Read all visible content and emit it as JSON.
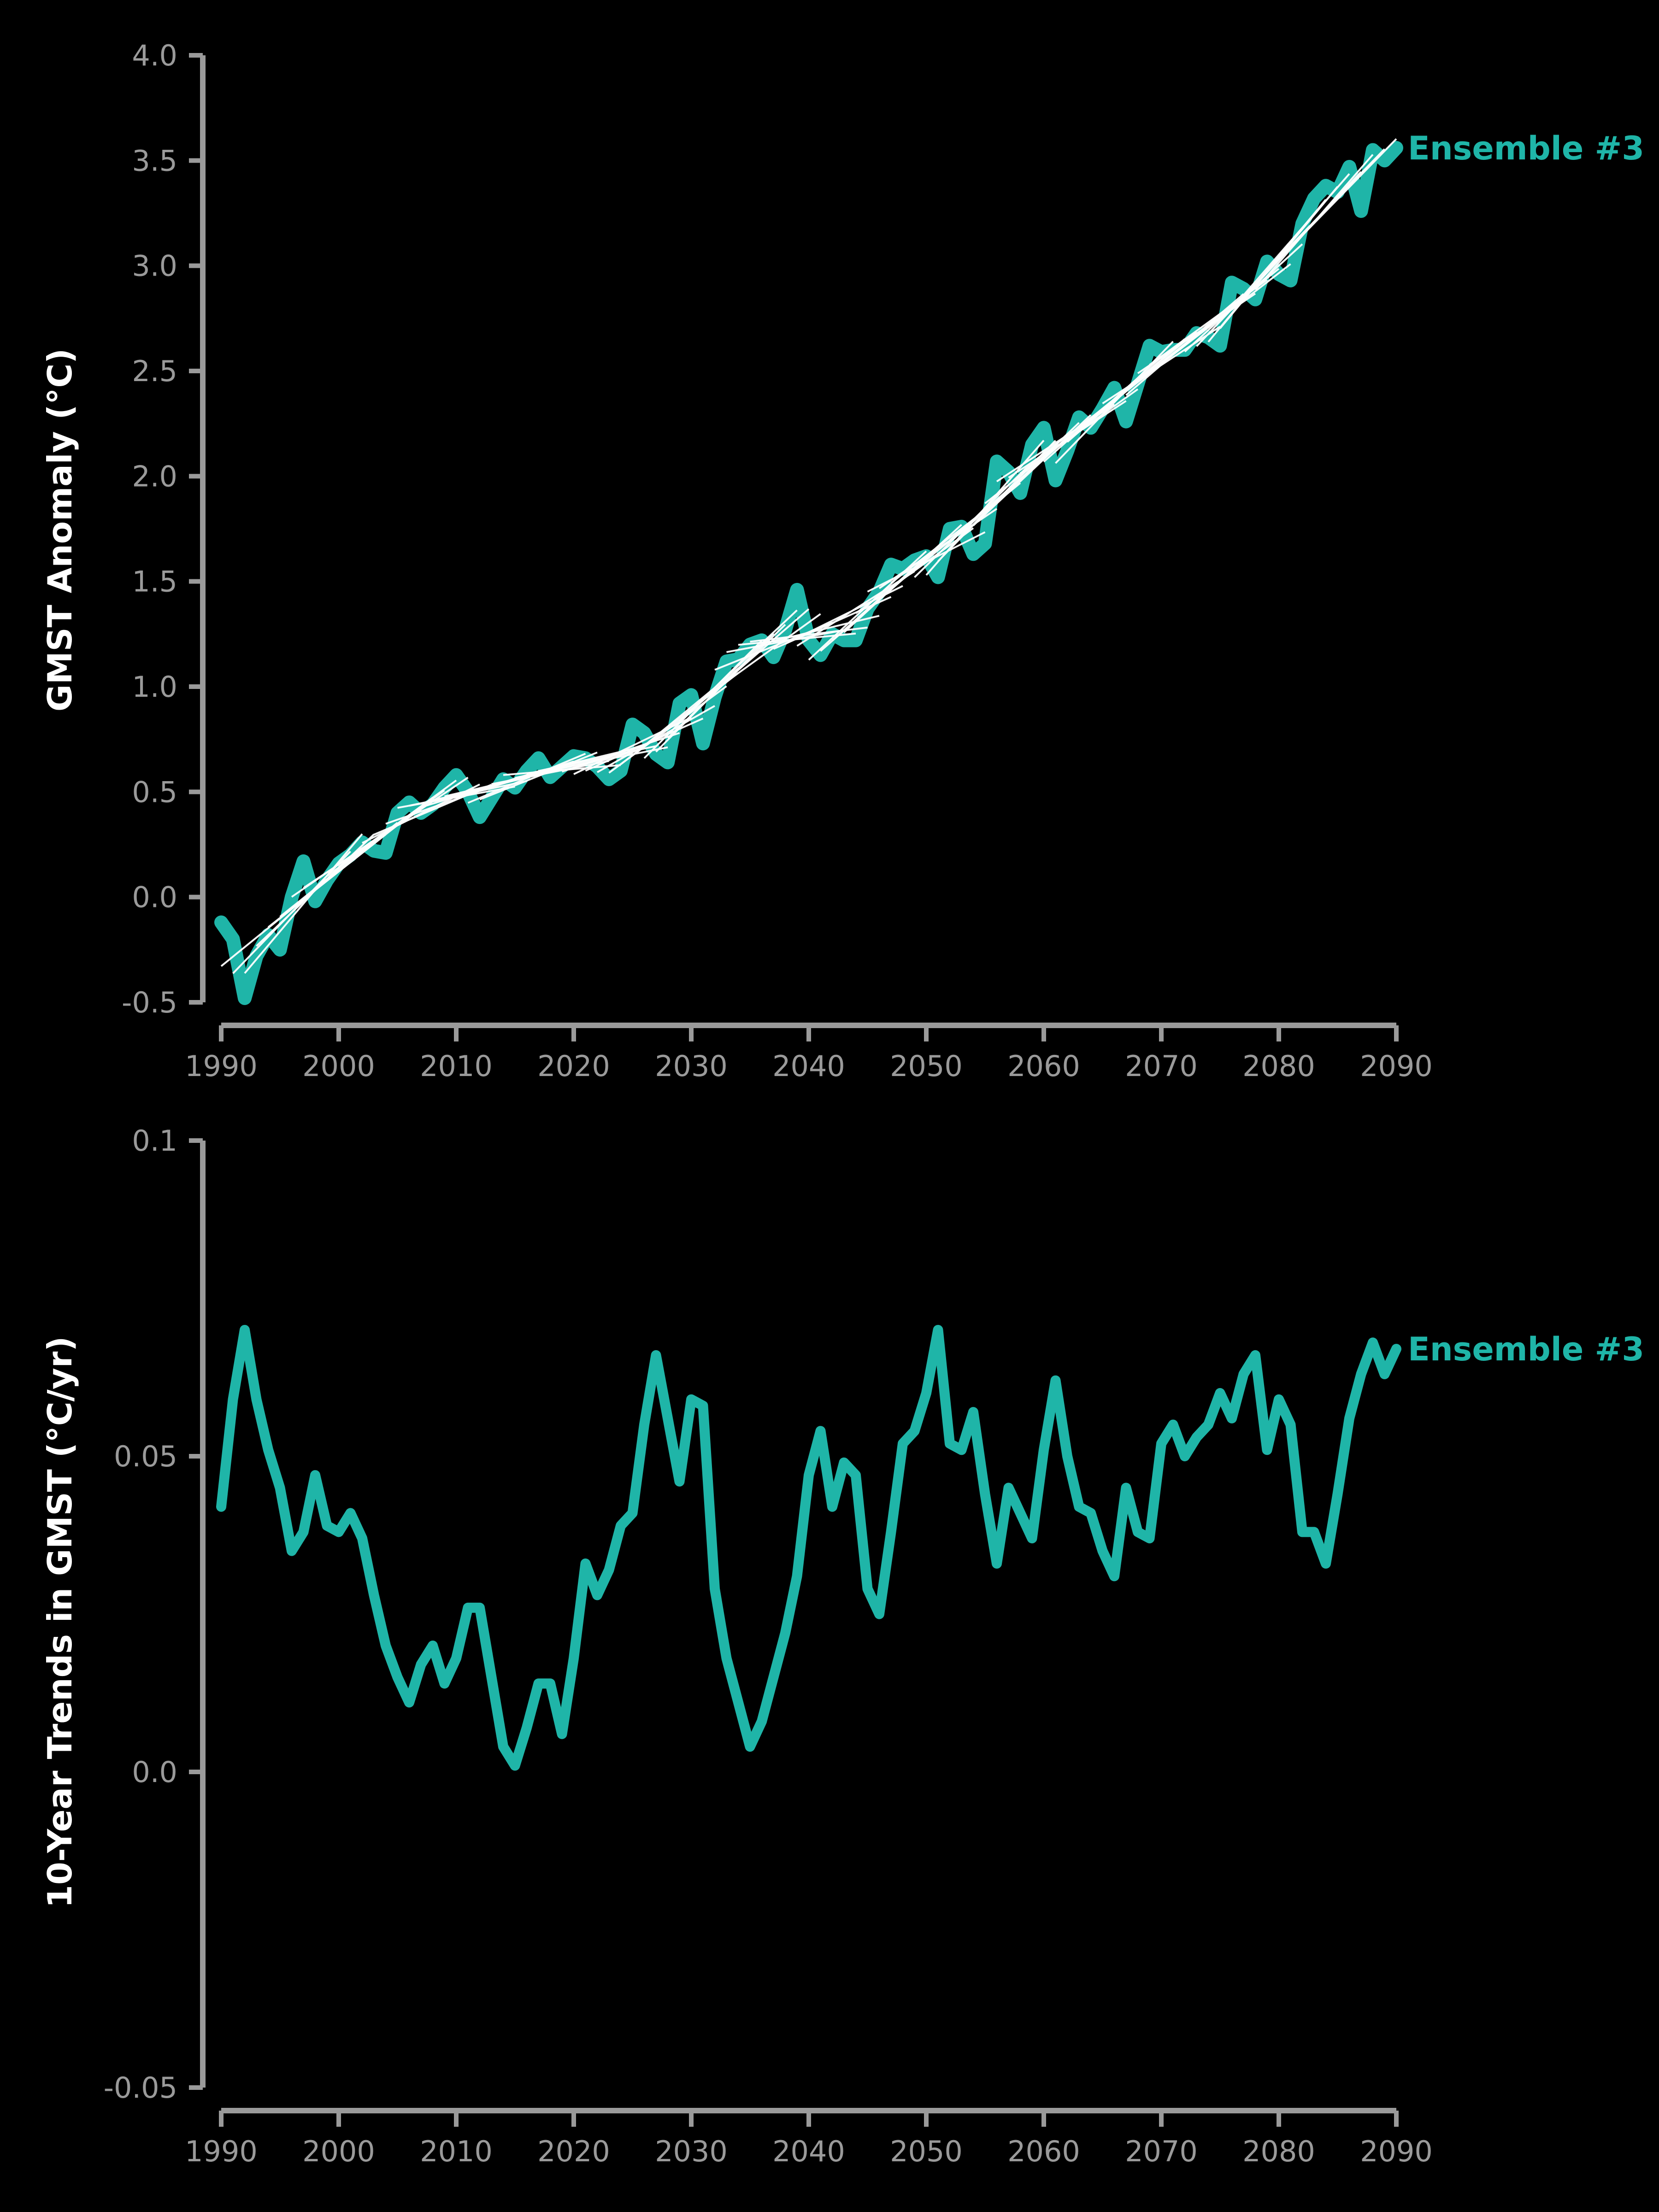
{
  "colors": {
    "background": "#000000",
    "axis": "#9a9a9a",
    "series": "#1fb5a8",
    "trend_segments": "#ffffff"
  },
  "chart_data": [
    {
      "type": "line",
      "title": "",
      "ylabel": "GMST Anomaly (°C)",
      "xlabel": "",
      "xlim": [
        1990,
        2090
      ],
      "ylim": [
        -0.5,
        4.0
      ],
      "xticks": [
        "1990",
        "2000",
        "2010",
        "2020",
        "2030",
        "2040",
        "2050",
        "2060",
        "2070",
        "2080",
        "2090"
      ],
      "yticks": [
        "-0.5",
        "0.0",
        "0.5",
        "1.0",
        "1.5",
        "2.0",
        "2.5",
        "3.0",
        "3.5",
        "4.0"
      ],
      "grid": false,
      "series": [
        {
          "name": "Ensemble #3",
          "color": "#1fb5a8",
          "x": [
            1990,
            1991,
            1992,
            1993,
            1994,
            1995,
            1996,
            1997,
            1998,
            1999,
            2000,
            2001,
            2002,
            2003,
            2004,
            2005,
            2006,
            2007,
            2008,
            2009,
            2010,
            2011,
            2012,
            2013,
            2014,
            2015,
            2016,
            2017,
            2018,
            2019,
            2020,
            2021,
            2022,
            2023,
            2024,
            2025,
            2026,
            2027,
            2028,
            2029,
            2030,
            2031,
            2032,
            2033,
            2034,
            2035,
            2036,
            2037,
            2038,
            2039,
            2040,
            2041,
            2042,
            2043,
            2044,
            2045,
            2046,
            2047,
            2048,
            2049,
            2050,
            2051,
            2052,
            2053,
            2054,
            2055,
            2056,
            2057,
            2058,
            2059,
            2060,
            2061,
            2062,
            2063,
            2064,
            2065,
            2066,
            2067,
            2068,
            2069,
            2070,
            2071,
            2072,
            2073,
            2074,
            2075,
            2076,
            2077,
            2078,
            2079,
            2080,
            2081,
            2082,
            2083,
            2084,
            2085,
            2086,
            2087,
            2088,
            2089,
            2090
          ],
          "y": [
            -0.12,
            -0.2,
            -0.48,
            -0.28,
            -0.18,
            -0.25,
            0.0,
            0.17,
            -0.02,
            0.08,
            0.16,
            0.2,
            0.26,
            0.22,
            0.21,
            0.4,
            0.45,
            0.4,
            0.44,
            0.52,
            0.58,
            0.5,
            0.38,
            0.47,
            0.56,
            0.52,
            0.6,
            0.66,
            0.57,
            0.62,
            0.67,
            0.66,
            0.62,
            0.56,
            0.6,
            0.82,
            0.78,
            0.68,
            0.64,
            0.92,
            0.96,
            0.73,
            0.95,
            1.12,
            1.13,
            1.2,
            1.22,
            1.14,
            1.27,
            1.46,
            1.22,
            1.15,
            1.25,
            1.22,
            1.22,
            1.37,
            1.45,
            1.58,
            1.56,
            1.6,
            1.62,
            1.52,
            1.75,
            1.76,
            1.63,
            1.68,
            2.07,
            2.02,
            1.92,
            2.15,
            2.23,
            1.98,
            2.12,
            2.28,
            2.23,
            2.32,
            2.42,
            2.26,
            2.44,
            2.62,
            2.59,
            2.6,
            2.6,
            2.68,
            2.66,
            2.62,
            2.92,
            2.89,
            2.84,
            3.02,
            2.96,
            2.93,
            3.2,
            3.32,
            3.38,
            3.35,
            3.47,
            3.26,
            3.55,
            3.5,
            3.56
          ]
        }
      ],
      "overlay": {
        "type": "line-segments",
        "description": "",
        "color": "#ffffff",
        "window": 10
      },
      "annotations": [
        "Ensemble #3"
      ]
    },
    {
      "type": "line",
      "title": "",
      "ylabel": "10-Year Trends in GMST (°C/yr)",
      "xlabel": "",
      "xlim": [
        1990,
        2090
      ],
      "ylim": [
        -0.05,
        0.1
      ],
      "xticks": [
        "1990",
        "2000",
        "2010",
        "2020",
        "2030",
        "2040",
        "2050",
        "2060",
        "2070",
        "2080",
        "2090"
      ],
      "yticks": [
        "-0.05",
        "0.0",
        "0.05",
        "0.1"
      ],
      "grid": false,
      "series": [
        {
          "name": "Ensemble #3",
          "color": "#1fb5a8",
          "x": [
            1990,
            1991,
            1992,
            1993,
            1994,
            1995,
            1996,
            1997,
            1998,
            1999,
            2000,
            2001,
            2002,
            2003,
            2004,
            2005,
            2006,
            2007,
            2008,
            2009,
            2010,
            2011,
            2012,
            2013,
            2014,
            2015,
            2016,
            2017,
            2018,
            2019,
            2020,
            2021,
            2022,
            2023,
            2024,
            2025,
            2026,
            2027,
            2028,
            2029,
            2030,
            2031,
            2032,
            2033,
            2034,
            2035,
            2036,
            2037,
            2038,
            2039,
            2040,
            2041,
            2042,
            2043,
            2044,
            2045,
            2046,
            2047,
            2048,
            2049,
            2050,
            2051,
            2052,
            2053,
            2054,
            2055,
            2056,
            2057,
            2058,
            2059,
            2060,
            2061,
            2062,
            2063,
            2064,
            2065,
            2066,
            2067,
            2068,
            2069,
            2070,
            2071,
            2072,
            2073,
            2074,
            2075,
            2076,
            2077,
            2078,
            2079,
            2080,
            2081,
            2082,
            2083,
            2084,
            2085,
            2086,
            2087,
            2088,
            2089,
            2090
          ],
          "y": [
            0.042,
            0.059,
            0.07,
            0.059,
            0.051,
            0.045,
            0.035,
            0.038,
            0.047,
            0.039,
            0.038,
            0.041,
            0.037,
            0.028,
            0.02,
            0.015,
            0.011,
            0.017,
            0.02,
            0.014,
            0.018,
            0.026,
            0.026,
            0.015,
            0.004,
            0.001,
            0.007,
            0.014,
            0.014,
            0.006,
            0.018,
            0.033,
            0.028,
            0.032,
            0.039,
            0.041,
            0.055,
            0.066,
            0.056,
            0.046,
            0.059,
            0.058,
            0.029,
            0.018,
            0.011,
            0.004,
            0.008,
            0.015,
            0.022,
            0.031,
            0.047,
            0.054,
            0.042,
            0.049,
            0.047,
            0.029,
            0.025,
            0.038,
            0.052,
            0.054,
            0.06,
            0.07,
            0.052,
            0.051,
            0.057,
            0.044,
            0.033,
            0.045,
            0.041,
            0.037,
            0.051,
            0.062,
            0.05,
            0.042,
            0.041,
            0.035,
            0.031,
            0.045,
            0.038,
            0.037,
            0.052,
            0.055,
            0.05,
            0.053,
            0.055,
            0.06,
            0.056,
            0.063,
            0.066,
            0.051,
            0.059,
            0.055,
            0.038,
            0.038,
            0.033,
            0.044,
            0.056,
            0.063,
            0.068,
            0.063,
            0.067
          ]
        }
      ],
      "annotations": [
        "Ensemble #3"
      ]
    }
  ]
}
